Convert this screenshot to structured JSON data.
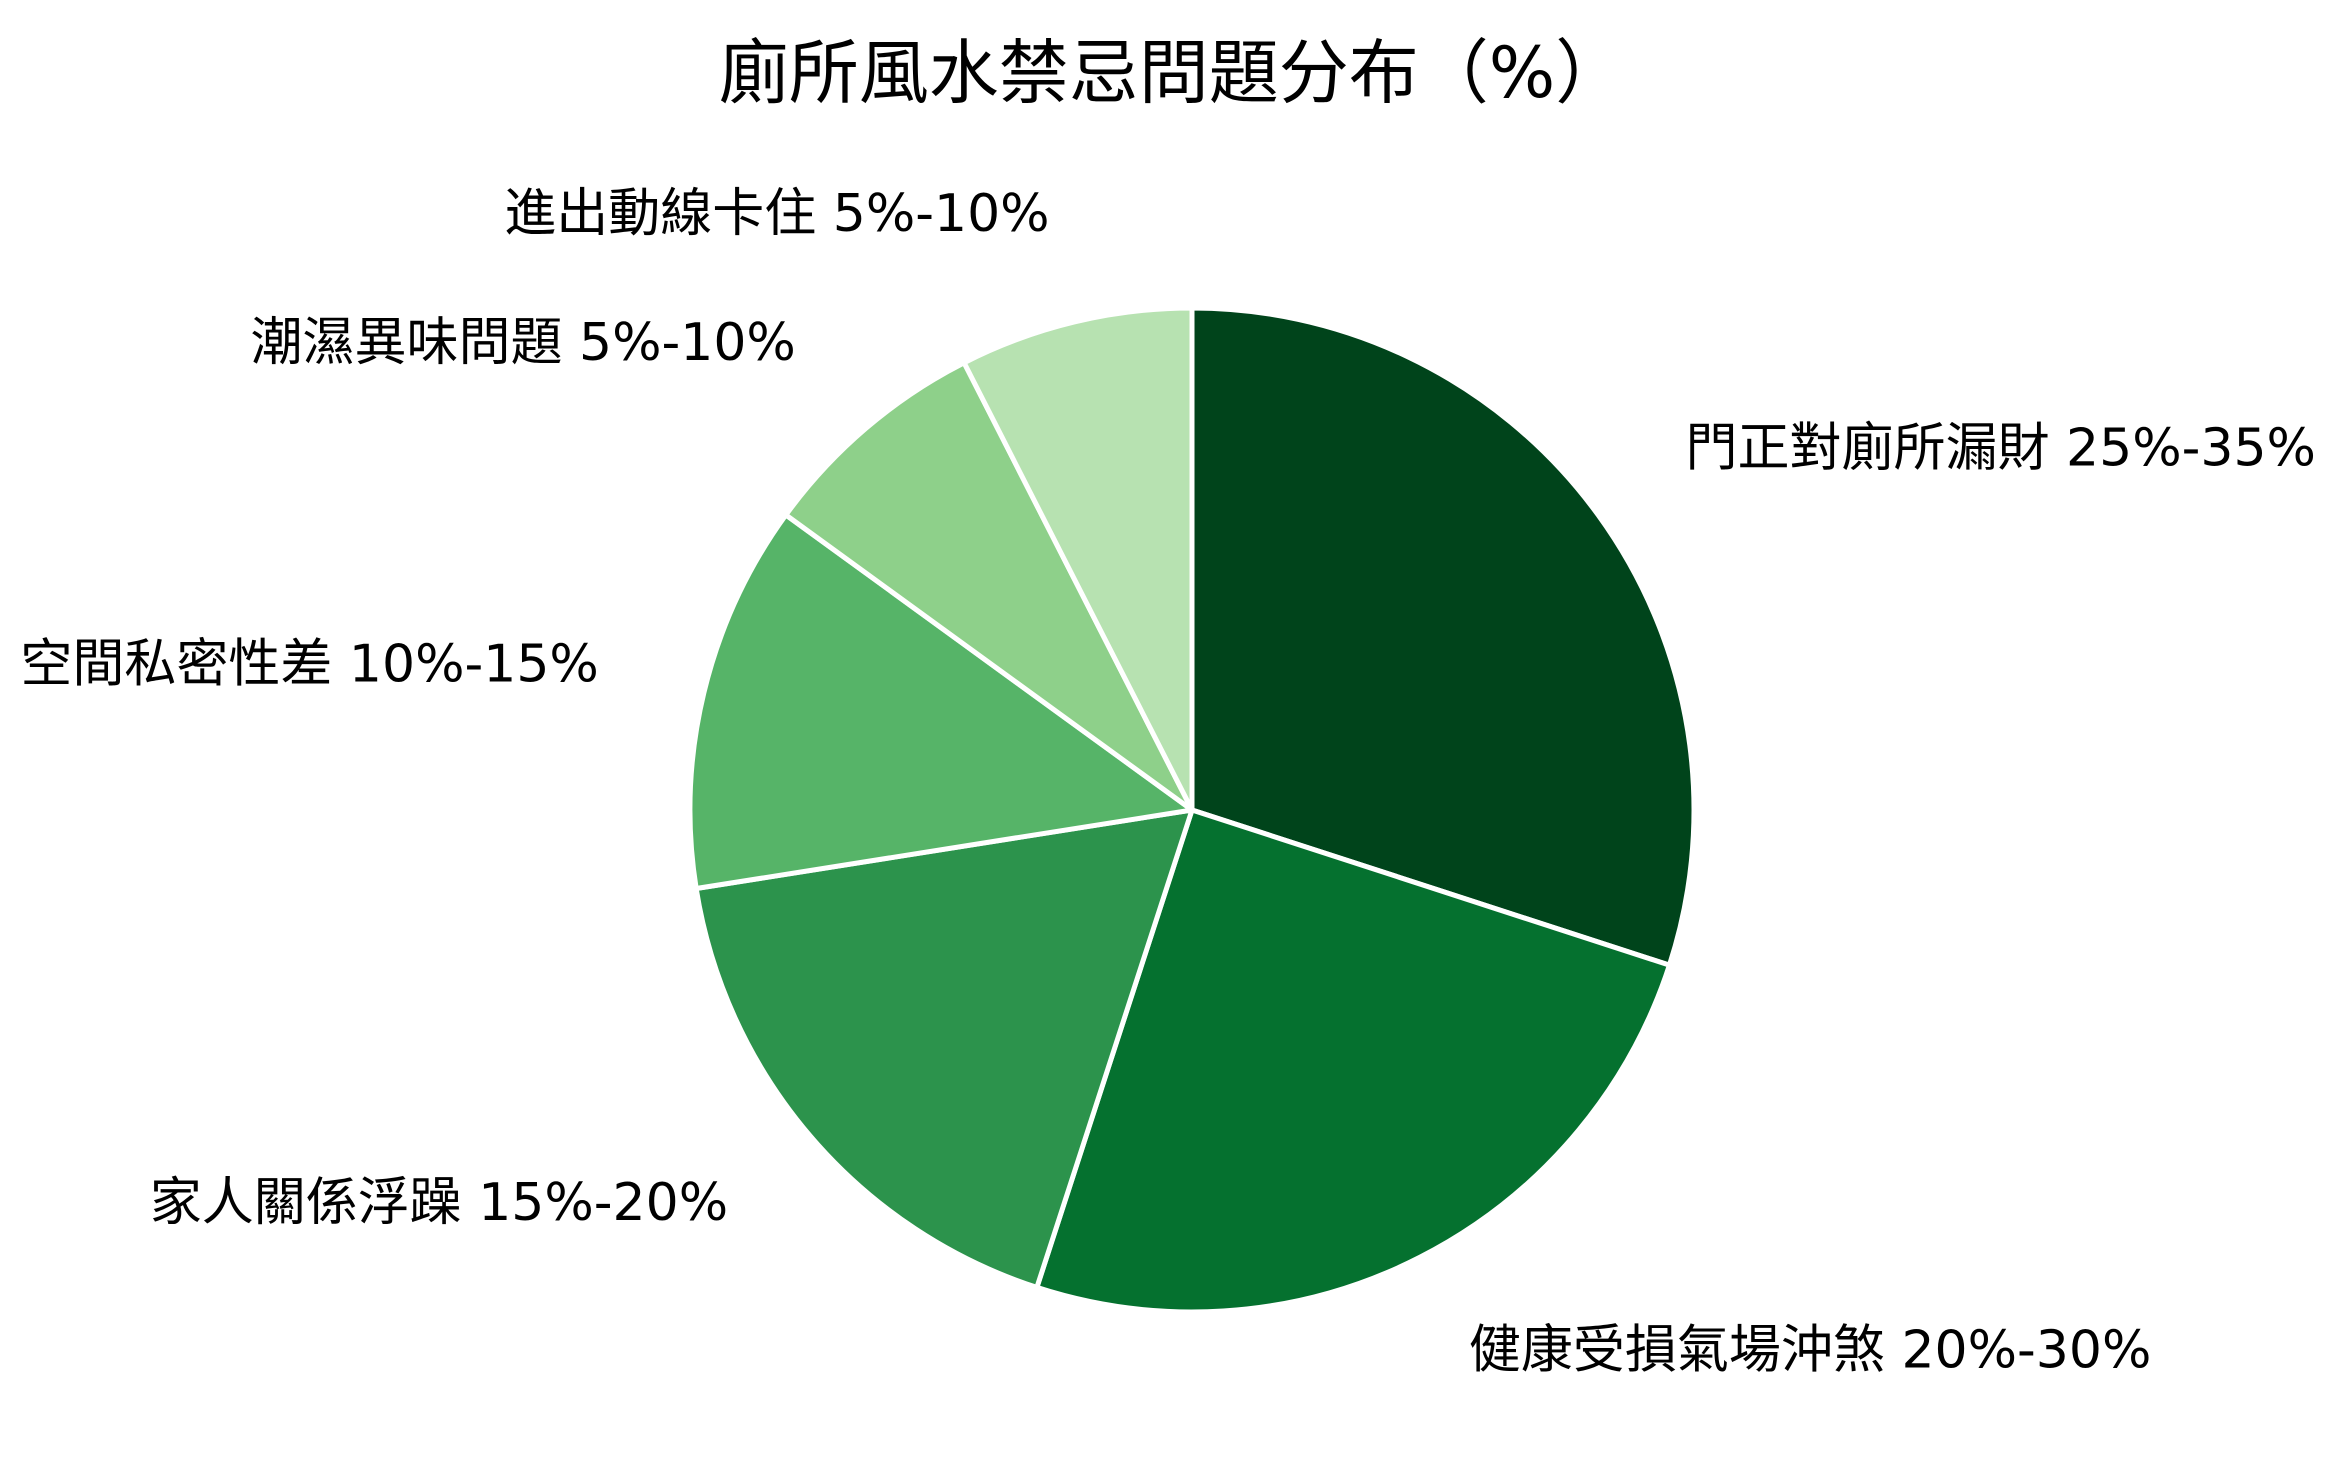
{
  "chart_data": {
    "type": "pie",
    "title": "廁所風水禁忌問題分布（%）",
    "slices": [
      {
        "label": "門正對廁所漏財 25%-35%",
        "value": 30,
        "color": "#00441b"
      },
      {
        "label": "健康受損氣場沖煞 20%-30%",
        "value": 25,
        "color": "#05712f"
      },
      {
        "label": "家人關係浮躁 15%-20%",
        "value": 17.5,
        "color": "#2c934c"
      },
      {
        "label": "空間私密性差 10%-15%",
        "value": 12.5,
        "color": "#56b468"
      },
      {
        "label": "潮濕異味問題 5%-10%",
        "value": 7.5,
        "color": "#8ed08a"
      },
      {
        "label": "進出動線卡住 5%-10%",
        "value": 7.5,
        "color": "#b7e2b1"
      }
    ],
    "start_angle": "12 o'clock",
    "direction": "clockwise",
    "legend": "none"
  }
}
